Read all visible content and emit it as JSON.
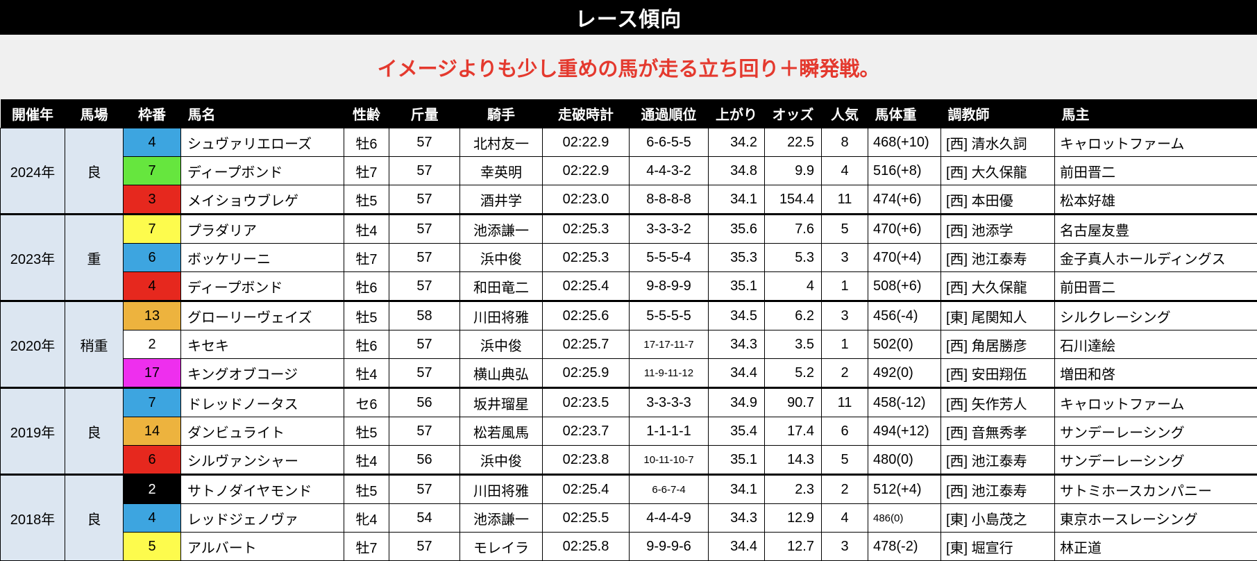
{
  "title": "レース傾向",
  "subtitle": "イメージよりも少し重めの馬が走る立ち回り＋瞬発戦。",
  "colors": {
    "title_bg": "#000000",
    "title_fg": "#ffffff",
    "subtitle_bg": "#f0f0f0",
    "subtitle_fg": "#e4392e",
    "header_bg": "#000000",
    "year_cell_bg": "#dce6f1",
    "waku_blue": "#3da5e0",
    "waku_green": "#66e63e",
    "waku_red": "#e6281e",
    "waku_yellow": "#fdfb4d",
    "waku_orange": "#edb33e",
    "waku_magenta": "#ee2fee",
    "waku_black": "#000000",
    "waku_white": "#ffffff"
  },
  "columns": [
    "開催年",
    "馬場",
    "枠番",
    "馬名",
    "性齢",
    "斤量",
    "騎手",
    "走破時計",
    "通過順位",
    "上がり",
    "オッズ",
    "人気",
    "馬体重",
    "調教師",
    "馬主"
  ],
  "groups": [
    {
      "year": "2024年",
      "track": "良",
      "rows": [
        {
          "waku": "4",
          "waku_bg": "#3da5e0",
          "waku_fg": "#000000",
          "horse": "シュヴァリエローズ",
          "sex_age": "牡6",
          "weight": "57",
          "jockey": "北村友一",
          "time": "02:22.9",
          "passing": "6-6-5-5",
          "passing_small": false,
          "last3f": "34.2",
          "odds": "22.5",
          "popularity": "8",
          "body_weight": "468(+10)",
          "body_small": false,
          "trainer": "[西] 清水久詞",
          "owner": "キャロットファーム"
        },
        {
          "waku": "7",
          "waku_bg": "#66e63e",
          "waku_fg": "#000000",
          "horse": "ディープボンド",
          "sex_age": "牡7",
          "weight": "57",
          "jockey": "幸英明",
          "time": "02:22.9",
          "passing": "4-4-3-2",
          "passing_small": false,
          "last3f": "34.8",
          "odds": "9.9",
          "popularity": "4",
          "body_weight": "516(+8)",
          "body_small": false,
          "trainer": "[西] 大久保龍",
          "owner": "前田晋二"
        },
        {
          "waku": "3",
          "waku_bg": "#e6281e",
          "waku_fg": "#000000",
          "horse": "メイショウブレゲ",
          "sex_age": "牡5",
          "weight": "57",
          "jockey": "酒井学",
          "time": "02:23.0",
          "passing": "8-8-8-8",
          "passing_small": false,
          "last3f": "34.1",
          "odds": "154.4",
          "popularity": "11",
          "body_weight": "474(+6)",
          "body_small": false,
          "trainer": "[西] 本田優",
          "owner": "松本好雄"
        }
      ]
    },
    {
      "year": "2023年",
      "track": "重",
      "rows": [
        {
          "waku": "7",
          "waku_bg": "#fdfb4d",
          "waku_fg": "#000000",
          "horse": "プラダリア",
          "sex_age": "牡4",
          "weight": "57",
          "jockey": "池添謙一",
          "time": "02:25.3",
          "passing": "3-3-3-2",
          "passing_small": false,
          "last3f": "35.6",
          "odds": "7.6",
          "popularity": "5",
          "body_weight": "470(+6)",
          "body_small": false,
          "trainer": "[西] 池添学",
          "owner": "名古屋友豊"
        },
        {
          "waku": "6",
          "waku_bg": "#3da5e0",
          "waku_fg": "#000000",
          "horse": "ボッケリーニ",
          "sex_age": "牡7",
          "weight": "57",
          "jockey": "浜中俊",
          "time": "02:25.3",
          "passing": "5-5-5-4",
          "passing_small": false,
          "last3f": "35.3",
          "odds": "5.3",
          "popularity": "3",
          "body_weight": "470(+4)",
          "body_small": false,
          "trainer": "[西] 池江泰寿",
          "owner": "金子真人ホールディングス"
        },
        {
          "waku": "4",
          "waku_bg": "#e6281e",
          "waku_fg": "#000000",
          "horse": "ディープボンド",
          "sex_age": "牡6",
          "weight": "57",
          "jockey": "和田竜二",
          "time": "02:25.4",
          "passing": "9-8-9-9",
          "passing_small": false,
          "last3f": "35.1",
          "odds": "4",
          "popularity": "1",
          "body_weight": "508(+6)",
          "body_small": false,
          "trainer": "[西] 大久保龍",
          "owner": "前田晋二"
        }
      ]
    },
    {
      "year": "2020年",
      "track": "稍重",
      "rows": [
        {
          "waku": "13",
          "waku_bg": "#edb33e",
          "waku_fg": "#000000",
          "horse": "グローリーヴェイズ",
          "sex_age": "牡5",
          "weight": "58",
          "jockey": "川田将雅",
          "time": "02:25.6",
          "passing": "5-5-5-5",
          "passing_small": false,
          "last3f": "34.5",
          "odds": "6.2",
          "popularity": "3",
          "body_weight": "456(-4)",
          "body_small": false,
          "trainer": "[東] 尾関知人",
          "owner": "シルクレーシング"
        },
        {
          "waku": "2",
          "waku_bg": "#ffffff",
          "waku_fg": "#000000",
          "horse": "キセキ",
          "sex_age": "牡6",
          "weight": "57",
          "jockey": "浜中俊",
          "time": "02:25.7",
          "passing": "17-17-11-7",
          "passing_small": true,
          "last3f": "34.3",
          "odds": "3.5",
          "popularity": "1",
          "body_weight": "502(0)",
          "body_small": false,
          "trainer": "[西] 角居勝彦",
          "owner": "石川達絵"
        },
        {
          "waku": "17",
          "waku_bg": "#ee2fee",
          "waku_fg": "#000000",
          "horse": "キングオブコージ",
          "sex_age": "牡4",
          "weight": "57",
          "jockey": "横山典弘",
          "time": "02:25.9",
          "passing": "11-9-11-12",
          "passing_small": true,
          "last3f": "34.4",
          "odds": "5.2",
          "popularity": "2",
          "body_weight": "492(0)",
          "body_small": false,
          "trainer": "[西] 安田翔伍",
          "owner": "増田和啓"
        }
      ]
    },
    {
      "year": "2019年",
      "track": "良",
      "rows": [
        {
          "waku": "7",
          "waku_bg": "#3da5e0",
          "waku_fg": "#000000",
          "horse": "ドレッドノータス",
          "sex_age": "セ6",
          "weight": "56",
          "jockey": "坂井瑠星",
          "time": "02:23.5",
          "passing": "3-3-3-3",
          "passing_small": false,
          "last3f": "34.9",
          "odds": "90.7",
          "popularity": "11",
          "body_weight": "458(-12)",
          "body_small": false,
          "trainer": "[西] 矢作芳人",
          "owner": "キャロットファーム"
        },
        {
          "waku": "14",
          "waku_bg": "#edb33e",
          "waku_fg": "#000000",
          "horse": "ダンビュライト",
          "sex_age": "牡5",
          "weight": "57",
          "jockey": "松若風馬",
          "time": "02:23.7",
          "passing": "1-1-1-1",
          "passing_small": false,
          "last3f": "35.4",
          "odds": "17.4",
          "popularity": "6",
          "body_weight": "494(+12)",
          "body_small": false,
          "trainer": "[西] 音無秀孝",
          "owner": "サンデーレーシング"
        },
        {
          "waku": "6",
          "waku_bg": "#e6281e",
          "waku_fg": "#000000",
          "horse": "シルヴァンシャー",
          "sex_age": "牡4",
          "weight": "56",
          "jockey": "浜中俊",
          "time": "02:23.8",
          "passing": "10-11-10-7",
          "passing_small": true,
          "last3f": "35.1",
          "odds": "14.3",
          "popularity": "5",
          "body_weight": "480(0)",
          "body_small": false,
          "trainer": "[西] 池江泰寿",
          "owner": "サンデーレーシング"
        }
      ]
    },
    {
      "year": "2018年",
      "track": "良",
      "rows": [
        {
          "waku": "2",
          "waku_bg": "#000000",
          "waku_fg": "#ffffff",
          "horse": "サトノダイヤモンド",
          "sex_age": "牡5",
          "weight": "57",
          "jockey": "川田将雅",
          "time": "02:25.4",
          "passing": "6-6-7-4",
          "passing_small": true,
          "last3f": "34.1",
          "odds": "2.3",
          "popularity": "2",
          "body_weight": "512(+4)",
          "body_small": false,
          "trainer": "[西] 池江泰寿",
          "owner": "サトミホースカンパニー"
        },
        {
          "waku": "4",
          "waku_bg": "#3da5e0",
          "waku_fg": "#000000",
          "horse": "レッドジェノヴァ",
          "sex_age": "牝4",
          "weight": "54",
          "jockey": "池添謙一",
          "time": "02:25.5",
          "passing": "4-4-4-9",
          "passing_small": false,
          "last3f": "34.3",
          "odds": "12.9",
          "popularity": "4",
          "body_weight": "486(0)",
          "body_small": true,
          "trainer": "[東] 小島茂之",
          "owner": "東京ホースレーシング"
        },
        {
          "waku": "5",
          "waku_bg": "#fdfb4d",
          "waku_fg": "#000000",
          "horse": "アルバート",
          "sex_age": "牡7",
          "weight": "57",
          "jockey": "モレイラ",
          "time": "02:25.8",
          "passing": "9-9-9-6",
          "passing_small": false,
          "last3f": "34.4",
          "odds": "12.7",
          "popularity": "3",
          "body_weight": "478(-2)",
          "body_small": false,
          "trainer": "[東] 堀宣行",
          "owner": "林正道"
        }
      ]
    }
  ]
}
